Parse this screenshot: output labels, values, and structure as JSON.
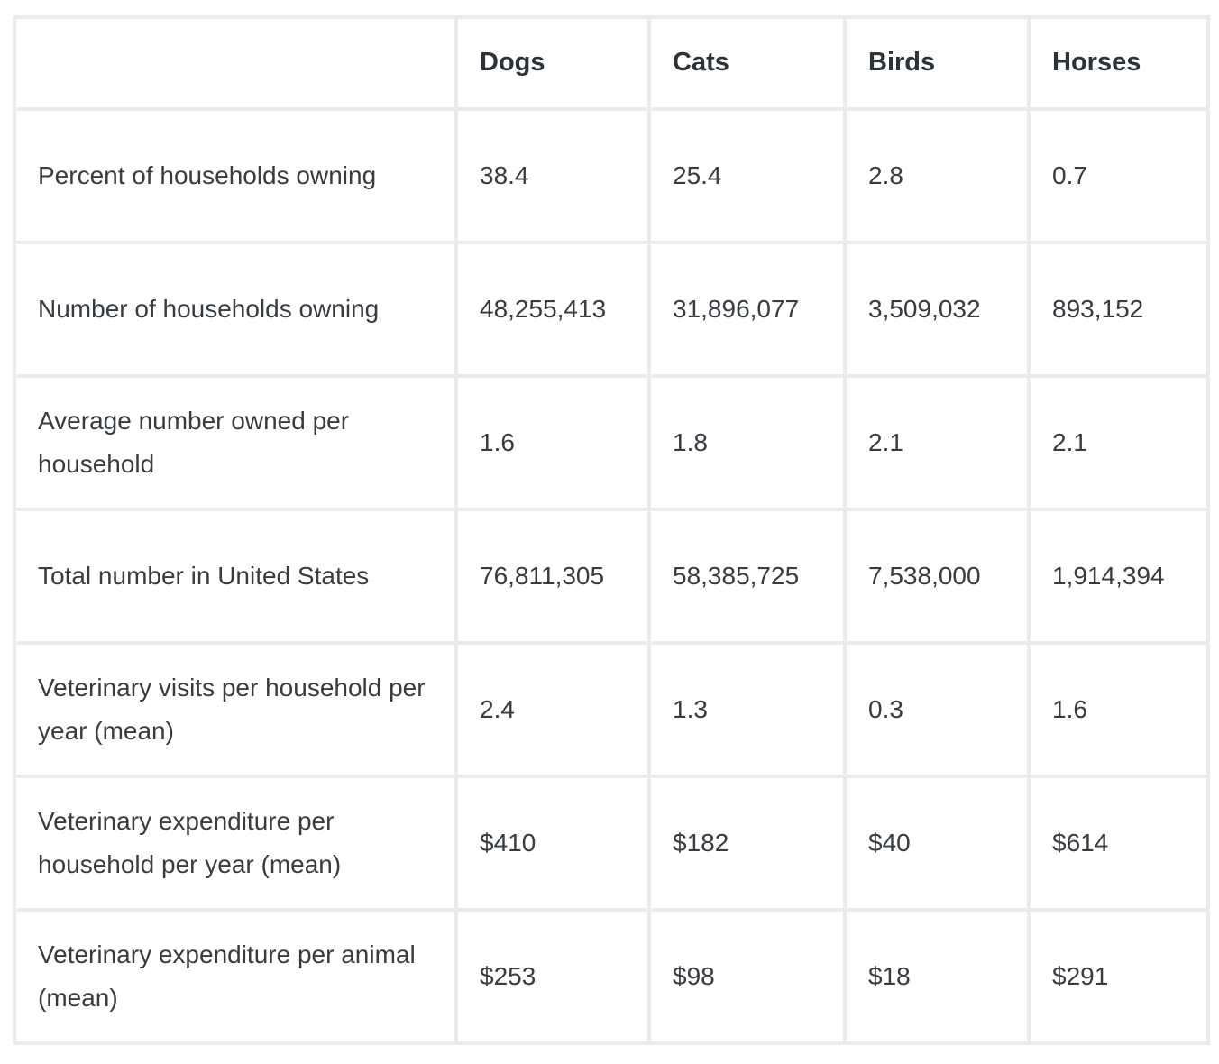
{
  "chart_data": {
    "type": "table",
    "title": "",
    "columns": [
      "",
      "Dogs",
      "Cats",
      "Birds",
      "Horses"
    ],
    "rows": [
      {
        "label": "Percent of households owning",
        "values": [
          "38.4",
          "25.4",
          "2.8",
          "0.7"
        ]
      },
      {
        "label": "Number of households owning",
        "values": [
          "48,255,413",
          "31,896,077",
          "3,509,032",
          "893,152"
        ]
      },
      {
        "label": "Average number owned per household",
        "values": [
          "1.6",
          "1.8",
          "2.1",
          "2.1"
        ]
      },
      {
        "label": "Total number in United States",
        "values": [
          "76,811,305",
          "58,385,725",
          "7,538,000",
          "1,914,394"
        ]
      },
      {
        "label": "Veterinary visits per household per year (mean)",
        "values": [
          "2.4",
          "1.3",
          "0.3",
          "1.6"
        ]
      },
      {
        "label": "Veterinary expenditure per household per year (mean)",
        "values": [
          "$410",
          "$182",
          "$40",
          "$614"
        ]
      },
      {
        "label": "Veterinary expenditure per animal (mean)",
        "values": [
          "$253",
          "$98",
          "$18",
          "$291"
        ]
      }
    ],
    "layout": {
      "grid": true,
      "header_bold": true
    },
    "colors": {
      "border": "#eaebeb",
      "cell_background": "#ffffff",
      "body_text": "#373c41",
      "header_text": "#2c3237"
    }
  }
}
